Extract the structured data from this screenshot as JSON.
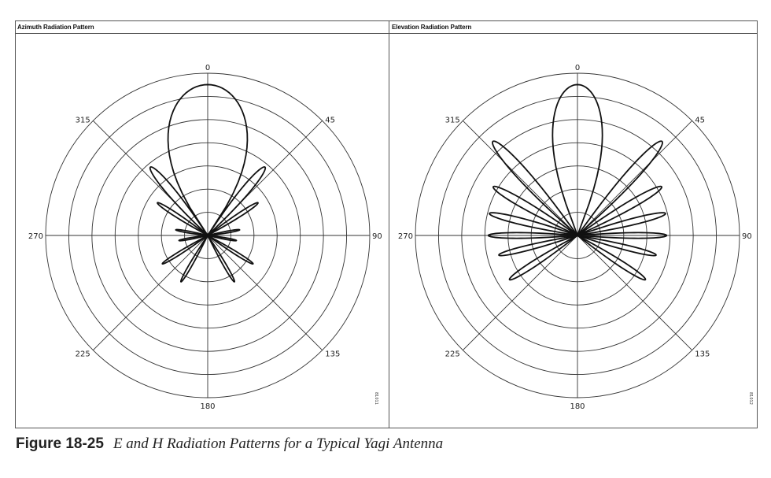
{
  "chart_data": [
    {
      "type": "polar",
      "title": "Azimuth Radiation Pattern",
      "angle_labels": [
        "0",
        "45",
        "90",
        "135",
        "180",
        "225",
        "270",
        "315"
      ],
      "grid": true,
      "rings": 7,
      "plot_id": "81011",
      "series": [
        {
          "lobes": [
            {
              "angle": 0,
              "width": 68,
              "r": 0.93
            },
            {
              "angle": 40,
              "width": 12,
              "r": 0.55
            },
            {
              "angle": -40,
              "width": 12,
              "r": 0.55
            },
            {
              "angle": 57,
              "width": 8,
              "r": 0.37
            },
            {
              "angle": -57,
              "width": 8,
              "r": 0.37
            },
            {
              "angle": 80,
              "width": 7,
              "r": 0.2
            },
            {
              "angle": -80,
              "width": 7,
              "r": 0.2
            },
            {
              "angle": 100,
              "width": 7,
              "r": 0.18
            },
            {
              "angle": -100,
              "width": 7,
              "r": 0.18
            },
            {
              "angle": 122,
              "width": 7,
              "r": 0.33
            },
            {
              "angle": -122,
              "width": 7,
              "r": 0.33
            },
            {
              "angle": 150,
              "width": 7,
              "r": 0.33
            },
            {
              "angle": -150,
              "width": 7,
              "r": 0.33
            }
          ]
        }
      ]
    },
    {
      "type": "polar",
      "title": "Elevation Radiation Pattern",
      "angle_labels": [
        "0",
        "45",
        "90",
        "135",
        "180",
        "225",
        "270",
        "315"
      ],
      "grid": true,
      "rings": 7,
      "plot_id": "81012",
      "series": [
        {
          "lobes": [
            {
              "angle": 0,
              "width": 42,
              "r": 0.93
            },
            {
              "angle": 42,
              "width": 12,
              "r": 0.78
            },
            {
              "angle": -42,
              "width": 12,
              "r": 0.78
            },
            {
              "angle": 60,
              "width": 10,
              "r": 0.6
            },
            {
              "angle": -60,
              "width": 10,
              "r": 0.6
            },
            {
              "angle": 76,
              "width": 9,
              "r": 0.56
            },
            {
              "angle": -76,
              "width": 9,
              "r": 0.56
            },
            {
              "angle": 90,
              "width": 8,
              "r": 0.55
            },
            {
              "angle": -90,
              "width": 8,
              "r": 0.55
            },
            {
              "angle": 104,
              "width": 8,
              "r": 0.5
            },
            {
              "angle": -104,
              "width": 8,
              "r": 0.5
            },
            {
              "angle": 123,
              "width": 9,
              "r": 0.5
            },
            {
              "angle": -123,
              "width": 9,
              "r": 0.5
            }
          ]
        }
      ]
    }
  ],
  "caption": {
    "figure_number": "Figure 18-25",
    "text": "E and H Radiation Patterns for a Typical Yagi Antenna"
  }
}
